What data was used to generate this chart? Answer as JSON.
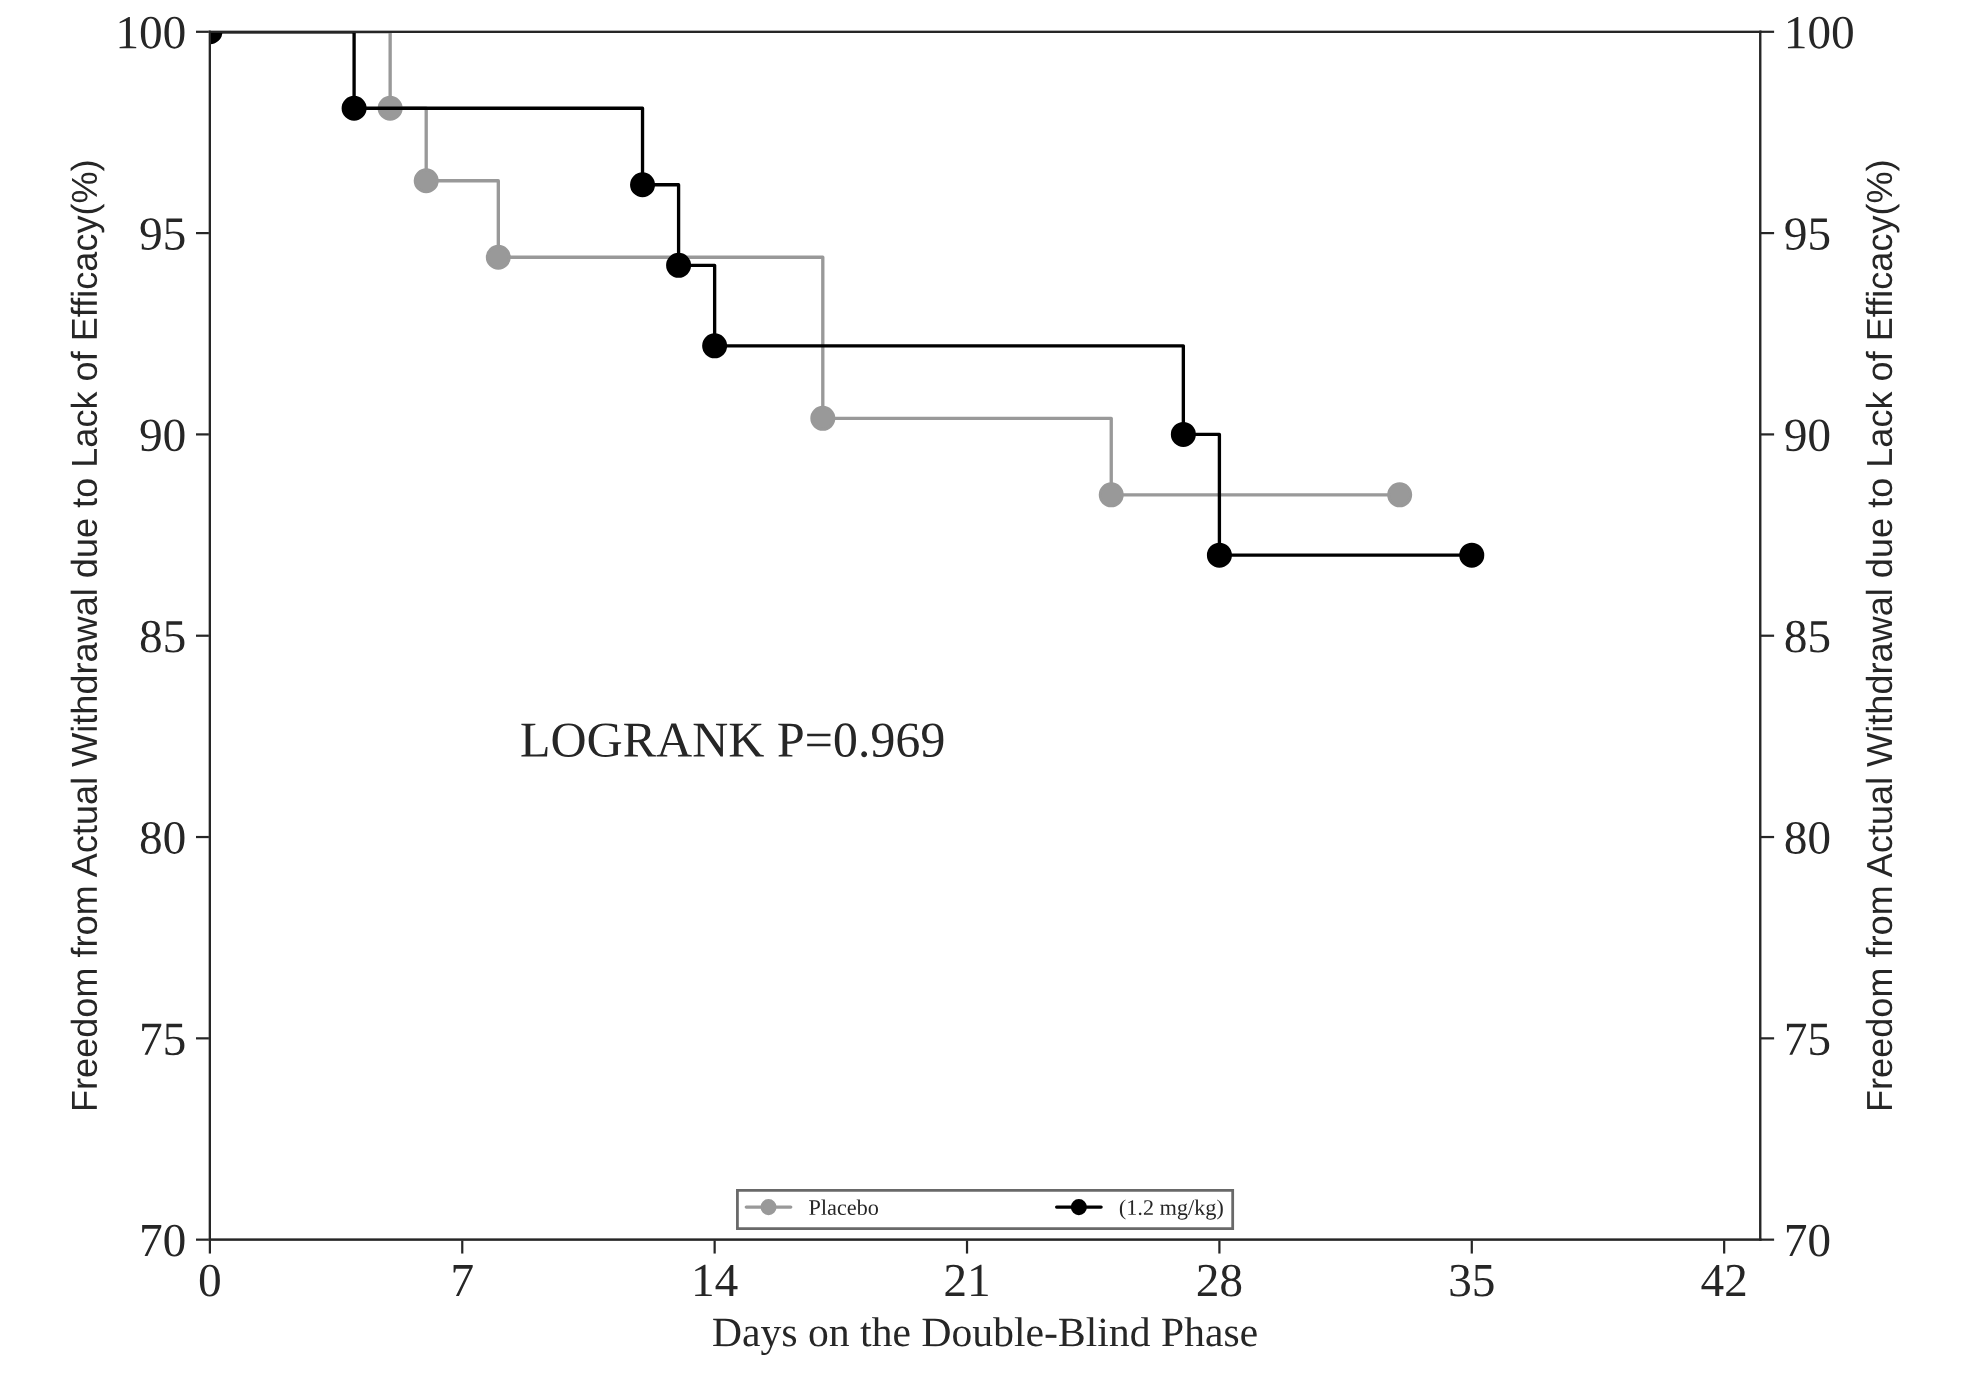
{
  "chart_data": {
    "type": "step",
    "xlabel": "Days on the Double-Blind Phase",
    "ylabel": "Freedom from Actual Withdrawal due to Lack of Efficacy(%)",
    "y2label": "Freedom from Actual Withdrawal due to Lack of Efficacy(%)",
    "series": [
      {
        "name": "Placebo",
        "color": "#999999",
        "x": [
          0,
          5,
          6,
          8,
          17,
          25,
          33
        ],
        "values": [
          100,
          98.1,
          96.3,
          94.4,
          90.4,
          88.5,
          88.5
        ]
      },
      {
        "name": "(1.2 mg/kg)",
        "color": "#000000",
        "x": [
          0,
          4,
          12,
          13,
          14,
          27,
          28,
          35
        ],
        "values": [
          100,
          98.1,
          96.2,
          94.2,
          92.2,
          90,
          87,
          87
        ]
      }
    ],
    "xlim": [
      0,
      43
    ],
    "xticks": [
      0,
      7,
      14,
      21,
      28,
      35,
      42
    ],
    "ylim": [
      70,
      100
    ],
    "yticks": [
      70,
      75,
      80,
      85,
      90,
      95,
      100
    ],
    "y2lim": [
      70,
      100
    ],
    "y2ticks": [
      70,
      75,
      80,
      85,
      90,
      95,
      100
    ],
    "annotations": [
      "LOGRANK P=0.969"
    ],
    "marker": "circle",
    "line_style": "solid",
    "grid": false,
    "legend": "bottom"
  }
}
